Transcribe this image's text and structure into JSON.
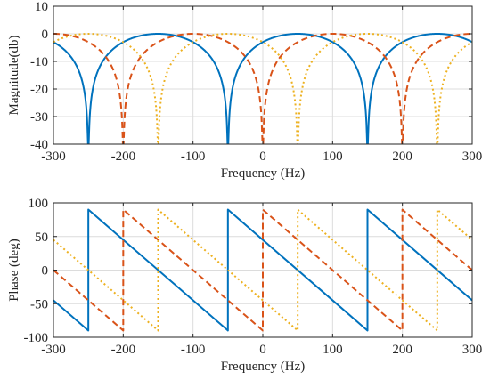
{
  "chart_data": [
    {
      "type": "line",
      "xlabel": "Frequency (Hz)",
      "ylabel": "Magnitude(db)",
      "xlim": [
        -300,
        300
      ],
      "ylim": [
        -40,
        10
      ],
      "xticks": [
        -300,
        -200,
        -100,
        0,
        100,
        200,
        300
      ],
      "yticks": [
        10,
        0,
        -10,
        -20,
        -30,
        -40
      ],
      "grid": true,
      "series": [
        {
          "style": "solid",
          "color": "#0072BD",
          "notches_hz": [
            -250,
            -50,
            150
          ],
          "period_hz": 200,
          "peak_db": 0
        },
        {
          "style": "dashed",
          "color": "#D95319",
          "notches_hz": [
            -200,
            0,
            200
          ],
          "period_hz": 200,
          "peak_db": 0
        },
        {
          "style": "dotted",
          "color": "#EDB120",
          "notches_hz": [
            -150,
            50,
            250
          ],
          "period_hz": 200,
          "peak_db": 0
        }
      ]
    },
    {
      "type": "line",
      "xlabel": "Frequency (Hz)",
      "ylabel": "Phase (deg)",
      "xlim": [
        -300,
        300
      ],
      "ylim": [
        -100,
        100
      ],
      "xticks": [
        -300,
        -200,
        -100,
        0,
        100,
        200,
        300
      ],
      "yticks": [
        100,
        50,
        0,
        -50,
        -100
      ],
      "grid": true,
      "series": [
        {
          "style": "solid",
          "color": "#0072BD",
          "jumps_hz": [
            -250,
            -50,
            150
          ],
          "period_hz": 200,
          "range_deg": [
            -90,
            90
          ]
        },
        {
          "style": "dashed",
          "color": "#D95319",
          "jumps_hz": [
            -200,
            0,
            200
          ],
          "period_hz": 200,
          "range_deg": [
            -90,
            90
          ]
        },
        {
          "style": "dotted",
          "color": "#EDB120",
          "jumps_hz": [
            -150,
            50,
            250
          ],
          "period_hz": 200,
          "range_deg": [
            -90,
            90
          ]
        }
      ]
    }
  ]
}
